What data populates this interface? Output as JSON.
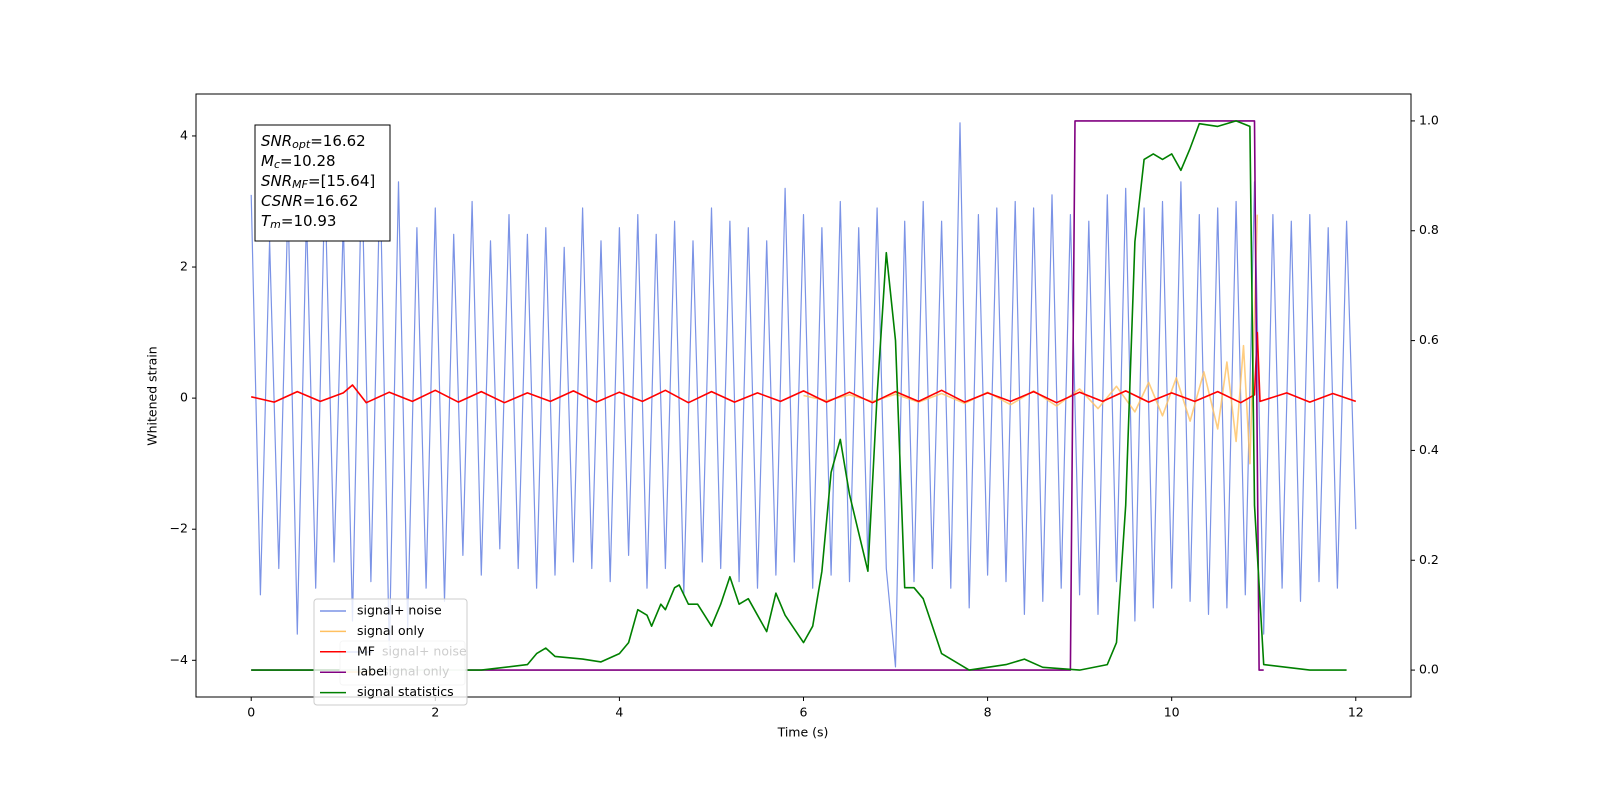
{
  "chart_data": {
    "type": "line",
    "xlabel": "Time (s)",
    "ylabel": "Whitened strain",
    "xlim": [
      -0.6,
      12.6
    ],
    "ylim": [
      -4.56,
      4.64
    ],
    "y2lim": [
      -0.049,
      1.049
    ],
    "xticks": [
      0,
      2,
      4,
      6,
      8,
      10,
      12
    ],
    "yticks": [
      {
        "value": -4,
        "label": "−4"
      },
      {
        "value": -2,
        "label": "−2"
      },
      0,
      2,
      4
    ],
    "y2ticks": [
      {
        "value": 0,
        "label": "0.0"
      },
      0.2,
      0.4,
      0.6,
      0.8,
      {
        "value": 1,
        "label": "1.0"
      }
    ],
    "annotation": [
      {
        "main": "SNR",
        "sub": "opt",
        "rest": "=16.62"
      },
      {
        "main": "M",
        "sub": "c",
        "rest": "=10.28"
      },
      {
        "main": "SNR",
        "sub": "MF",
        "rest": "=[15.64]"
      },
      {
        "main": "CSNR",
        "rest": "=16.62"
      },
      {
        "main": "T",
        "sub": "m",
        "rest": "=10.93"
      }
    ],
    "legend2": [
      {
        "name": "signal+ noise",
        "color": "#7b93e6"
      },
      {
        "name": "signal only",
        "color": "#ffc060"
      }
    ],
    "series": [
      {
        "name": "signal+ noise",
        "color": "#7b93e6",
        "axis": "y",
        "x": [
          0,
          0.1,
          0.2,
          0.3,
          0.4,
          0.5,
          0.6,
          0.7,
          0.8,
          0.9,
          1,
          1.1,
          1.2,
          1.3,
          1.4,
          1.5,
          1.6,
          1.7,
          1.8,
          1.9,
          2,
          2.1,
          2.2,
          2.3,
          2.4,
          2.5,
          2.6,
          2.7,
          2.8,
          2.9,
          3,
          3.1,
          3.2,
          3.3,
          3.4,
          3.5,
          3.6,
          3.7,
          3.8,
          3.9,
          4,
          4.1,
          4.2,
          4.3,
          4.4,
          4.5,
          4.6,
          4.7,
          4.8,
          4.9,
          5,
          5.1,
          5.2,
          5.3,
          5.4,
          5.5,
          5.6,
          5.7,
          5.8,
          5.9,
          6,
          6.1,
          6.2,
          6.3,
          6.4,
          6.5,
          6.6,
          6.7,
          6.8,
          6.9,
          7,
          7.1,
          7.2,
          7.3,
          7.4,
          7.5,
          7.6,
          7.7,
          7.8,
          7.9,
          8,
          8.1,
          8.2,
          8.3,
          8.4,
          8.5,
          8.6,
          8.7,
          8.8,
          8.9,
          9,
          9.1,
          9.2,
          9.3,
          9.4,
          9.5,
          9.6,
          9.7,
          9.8,
          9.9,
          10,
          10.1,
          10.2,
          10.3,
          10.4,
          10.5,
          10.6,
          10.7,
          10.8,
          10.9,
          11,
          11.1,
          11.2,
          11.3,
          11.4,
          11.5,
          11.6,
          11.7,
          11.8,
          11.9,
          12
        ],
        "values": [
          3.1,
          -3.0,
          2.4,
          -2.6,
          3.0,
          -3.6,
          2.8,
          -2.9,
          3.3,
          -2.5,
          2.7,
          -3.4,
          3.5,
          -2.8,
          3.4,
          -3.9,
          3.3,
          -3.5,
          2.6,
          -2.9,
          2.9,
          -3.1,
          2.5,
          -2.4,
          3.0,
          -2.7,
          2.4,
          -2.3,
          2.8,
          -2.6,
          2.5,
          -2.9,
          2.6,
          -2.7,
          2.3,
          -2.5,
          2.9,
          -2.6,
          2.4,
          -2.8,
          2.6,
          -2.4,
          2.8,
          -2.9,
          2.5,
          -2.6,
          2.7,
          -3.0,
          2.4,
          -2.5,
          2.9,
          -2.6,
          2.7,
          -2.8,
          2.6,
          -2.9,
          2.4,
          -2.7,
          3.2,
          -2.5,
          2.8,
          -2.9,
          2.6,
          -2.7,
          3.0,
          -2.8,
          2.6,
          -2.5,
          2.9,
          -2.6,
          -4.1,
          2.7,
          -2.8,
          3.0,
          -2.6,
          2.7,
          -2.9,
          4.2,
          -3.2,
          2.8,
          -2.7,
          2.9,
          -2.8,
          3.0,
          -3.3,
          2.9,
          -3.1,
          3.1,
          -2.9,
          2.8,
          -3.0,
          2.7,
          -3.3,
          3.1,
          -2.8,
          3.2,
          -3.4,
          2.9,
          -3.2,
          3.0,
          -2.9,
          3.3,
          -3.1,
          2.8,
          -3.3,
          2.9,
          -3.2,
          3.0,
          -3.0,
          3.3,
          -3.6,
          2.8,
          -2.9,
          2.7,
          -3.1,
          2.8,
          -2.8,
          2.6,
          -2.9,
          2.7,
          -2.0
        ]
      },
      {
        "name": "signal only",
        "color": "#ffc060",
        "axis": "y",
        "x": [
          6.0,
          6.25,
          6.5,
          6.75,
          7.0,
          7.25,
          7.5,
          7.75,
          8.0,
          8.25,
          8.5,
          8.75,
          9.0,
          9.2,
          9.4,
          9.6,
          9.75,
          9.9,
          10.05,
          10.2,
          10.35,
          10.5,
          10.6,
          10.7,
          10.78,
          10.85,
          10.9,
          10.93
        ],
        "values": [
          0.04,
          -0.04,
          0.05,
          -0.05,
          0.06,
          -0.06,
          0.07,
          -0.08,
          0.09,
          -0.1,
          0.11,
          -0.12,
          0.14,
          -0.16,
          0.18,
          -0.21,
          0.24,
          -0.27,
          0.31,
          -0.35,
          0.4,
          -0.47,
          0.55,
          -0.66,
          0.8,
          -1.0,
          1.3,
          2.8
        ]
      },
      {
        "name": "MF",
        "color": "#ff0000",
        "axis": "y",
        "x": [
          0,
          0.25,
          0.5,
          0.75,
          1,
          1.1,
          1.25,
          1.5,
          1.75,
          2,
          2.25,
          2.5,
          2.75,
          3,
          3.25,
          3.5,
          3.75,
          4,
          4.25,
          4.5,
          4.75,
          5,
          5.25,
          5.5,
          5.75,
          6,
          6.25,
          6.5,
          6.75,
          7,
          7.25,
          7.5,
          7.75,
          8,
          8.25,
          8.5,
          8.75,
          9,
          9.25,
          9.5,
          9.75,
          10,
          10.25,
          10.5,
          10.75,
          10.9,
          10.93,
          10.96,
          11.25,
          11.5,
          11.75,
          12
        ],
        "values": [
          0.02,
          -0.06,
          0.1,
          -0.05,
          0.08,
          0.2,
          -0.07,
          0.09,
          -0.05,
          0.12,
          -0.06,
          0.1,
          -0.07,
          0.08,
          -0.05,
          0.11,
          -0.06,
          0.09,
          -0.05,
          0.12,
          -0.07,
          0.1,
          -0.06,
          0.08,
          -0.05,
          0.11,
          -0.06,
          0.09,
          -0.07,
          0.1,
          -0.05,
          0.12,
          -0.06,
          0.08,
          -0.05,
          0.1,
          -0.07,
          0.09,
          -0.05,
          0.11,
          -0.06,
          0.08,
          -0.05,
          0.1,
          -0.07,
          0.05,
          1.0,
          -0.05,
          0.08,
          -0.06,
          0.07,
          -0.05
        ]
      },
      {
        "name": "label",
        "color": "#800080",
        "axis": "y2",
        "x": [
          0,
          8.9,
          8.95,
          10.9,
          10.95,
          11.0
        ],
        "values": [
          0,
          0,
          1,
          1,
          0,
          0
        ]
      },
      {
        "name": "signal statistics",
        "color": "#008000",
        "axis": "y2",
        "x": [
          0,
          1,
          2,
          2.5,
          3,
          3.1,
          3.2,
          3.3,
          3.6,
          3.8,
          4.0,
          4.1,
          4.2,
          4.3,
          4.35,
          4.45,
          4.5,
          4.6,
          4.65,
          4.75,
          4.85,
          5.0,
          5.1,
          5.2,
          5.3,
          5.4,
          5.5,
          5.6,
          5.7,
          5.8,
          6.0,
          6.1,
          6.2,
          6.3,
          6.4,
          6.5,
          6.6,
          6.7,
          6.8,
          6.9,
          7.0,
          7.1,
          7.2,
          7.3,
          7.5,
          7.8,
          8.0,
          8.2,
          8.4,
          8.6,
          9.0,
          9.3,
          9.4,
          9.5,
          9.6,
          9.7,
          9.8,
          9.9,
          10.0,
          10.1,
          10.2,
          10.3,
          10.5,
          10.7,
          10.85,
          10.9,
          11.0,
          11.5,
          11.9
        ],
        "values": [
          0,
          0,
          0,
          0,
          0.01,
          0.03,
          0.04,
          0.025,
          0.02,
          0.015,
          0.03,
          0.05,
          0.11,
          0.1,
          0.08,
          0.12,
          0.11,
          0.15,
          0.155,
          0.12,
          0.12,
          0.08,
          0.12,
          0.17,
          0.12,
          0.13,
          0.1,
          0.07,
          0.14,
          0.1,
          0.05,
          0.08,
          0.18,
          0.36,
          0.42,
          0.32,
          0.25,
          0.18,
          0.5,
          0.76,
          0.6,
          0.15,
          0.15,
          0.13,
          0.03,
          0,
          0.005,
          0.01,
          0.02,
          0.005,
          0,
          0.01,
          0.05,
          0.3,
          0.78,
          0.93,
          0.94,
          0.93,
          0.94,
          0.91,
          0.95,
          0.995,
          0.99,
          1,
          0.99,
          0.3,
          0.01,
          0,
          0
        ]
      }
    ]
  }
}
